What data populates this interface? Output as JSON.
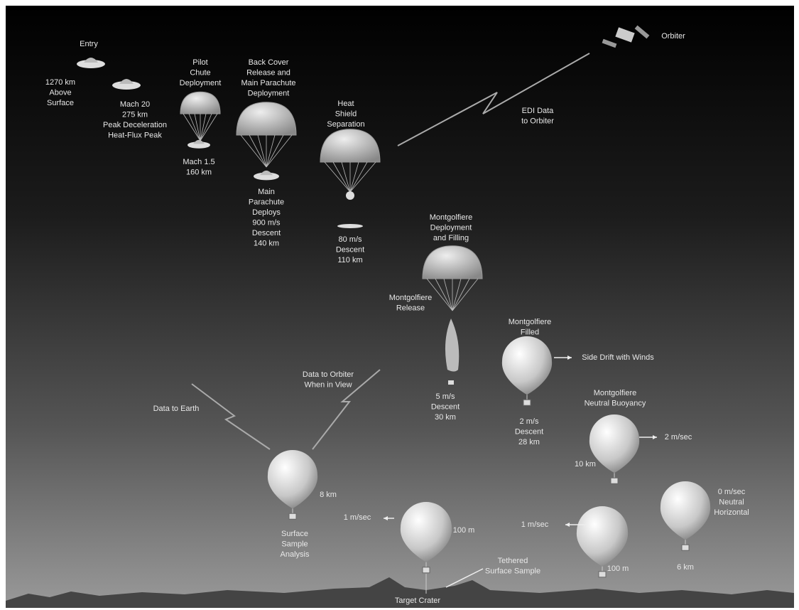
{
  "labels": [
    {
      "lines": [
        "Entry"
      ]
    },
    {
      "lines": [
        "1270 km",
        "Above",
        "Surface"
      ]
    },
    {
      "lines": [
        "Mach 20",
        "275 km",
        "Peak Deceleration",
        "Heat-Flux Peak"
      ]
    },
    {
      "lines": [
        "Pilot",
        "Chute",
        "Deployment"
      ]
    },
    {
      "lines": [
        "Mach 1.5",
        "160 km"
      ]
    },
    {
      "lines": [
        "Back Cover",
        "Release and",
        "Main Parachute",
        "Deployment"
      ]
    },
    {
      "lines": [
        "Main",
        "Parachute",
        "Deploys",
        "900 m/s",
        "Descent",
        "140 km"
      ]
    },
    {
      "lines": [
        "Heat",
        "Shield",
        "Separation"
      ]
    },
    {
      "lines": [
        "80 m/s",
        "Descent",
        "110 km"
      ]
    },
    {
      "lines": [
        "Orbiter"
      ]
    },
    {
      "lines": [
        "EDI Data",
        "to Orbiter"
      ]
    },
    {
      "lines": [
        "Montgolfiere",
        "Deployment",
        "and Filling"
      ]
    },
    {
      "lines": [
        "Montgolfiere",
        "Release"
      ]
    },
    {
      "lines": [
        "5 m/s",
        "Descent",
        "30 km"
      ]
    },
    {
      "lines": [
        "Montgolfiere",
        "Filled"
      ]
    },
    {
      "lines": [
        "Side Drift with Winds"
      ]
    },
    {
      "lines": [
        "2 m/s",
        "Descent",
        "28 km"
      ]
    },
    {
      "lines": [
        "Montgolfiere",
        "Neutral Buoyancy"
      ]
    },
    {
      "lines": [
        "2 m/sec"
      ]
    },
    {
      "lines": [
        "10 km"
      ]
    },
    {
      "lines": [
        "Data to Orbiter",
        "When in View"
      ]
    },
    {
      "lines": [
        "Data to Earth"
      ]
    },
    {
      "lines": [
        "8 km"
      ]
    },
    {
      "lines": [
        "Surface",
        "Sample",
        "Analysis"
      ]
    },
    {
      "lines": [
        "1 m/sec"
      ]
    },
    {
      "lines": [
        "100 m"
      ]
    },
    {
      "lines": [
        "Tethered",
        "Surface Sample"
      ]
    },
    {
      "lines": [
        "Target Crater"
      ]
    },
    {
      "lines": [
        "1 m/sec"
      ]
    },
    {
      "lines": [
        "100 m"
      ]
    },
    {
      "lines": [
        "0 m/sec",
        "Neutral",
        "Horizontal"
      ]
    },
    {
      "lines": [
        "6 km"
      ]
    }
  ]
}
